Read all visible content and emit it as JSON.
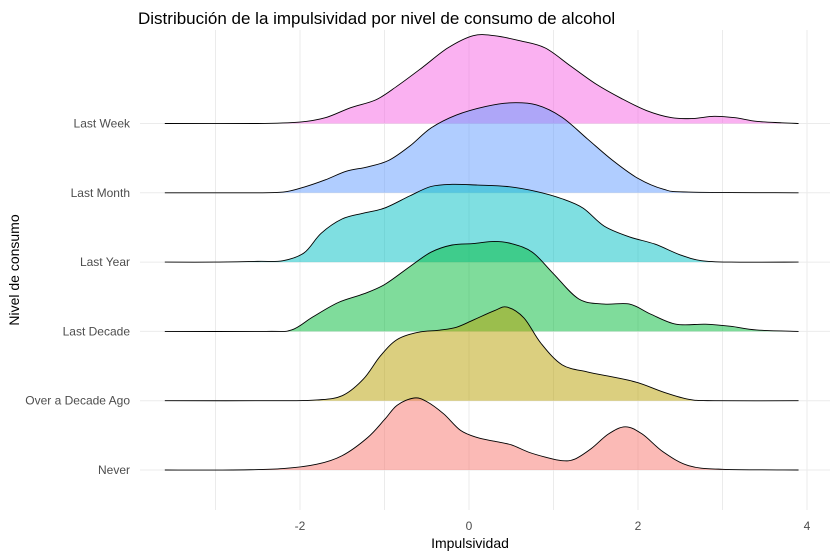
{
  "chart_data": {
    "type": "ridgeline",
    "title": "Distribución de la impulsividad por nivel de consumo de alcohol",
    "xlabel": "Impulsividad",
    "ylabel": "Nivel de consumo",
    "xlim": [
      -3.5,
      4.0
    ],
    "x_ticks": [
      "-2",
      "0",
      "2",
      "4"
    ],
    "grid": true,
    "legend": "none",
    "categories": [
      "Never",
      "Over a Decade Ago",
      "Last Decade",
      "Last Year",
      "Last Month",
      "Last Week"
    ],
    "colors": [
      "#F8766D",
      "#B79F00",
      "#00BA38",
      "#00BFC4",
      "#619CFF",
      "#F564E3"
    ],
    "fill_opacity": 0.5,
    "series": [
      {
        "name": "Never",
        "points": [
          [
            -3.6,
            0
          ],
          [
            -2.8,
            0
          ],
          [
            -2.2,
            0.02
          ],
          [
            -1.8,
            0.08
          ],
          [
            -1.5,
            0.2
          ],
          [
            -1.2,
            0.45
          ],
          [
            -1.0,
            0.7
          ],
          [
            -0.85,
            0.9
          ],
          [
            -0.65,
            1.0
          ],
          [
            -0.5,
            0.95
          ],
          [
            -0.3,
            0.78
          ],
          [
            -0.1,
            0.55
          ],
          [
            0.1,
            0.45
          ],
          [
            0.3,
            0.4
          ],
          [
            0.5,
            0.35
          ],
          [
            0.7,
            0.25
          ],
          [
            0.9,
            0.18
          ],
          [
            1.1,
            0.13
          ],
          [
            1.25,
            0.15
          ],
          [
            1.45,
            0.3
          ],
          [
            1.65,
            0.5
          ],
          [
            1.85,
            0.6
          ],
          [
            2.05,
            0.5
          ],
          [
            2.3,
            0.25
          ],
          [
            2.6,
            0.06
          ],
          [
            3.0,
            0.01
          ],
          [
            3.9,
            0
          ]
        ]
      },
      {
        "name": "Over a Decade Ago",
        "points": [
          [
            -3.6,
            0
          ],
          [
            -2.2,
            0
          ],
          [
            -1.8,
            0.01
          ],
          [
            -1.5,
            0.07
          ],
          [
            -1.25,
            0.3
          ],
          [
            -1.05,
            0.62
          ],
          [
            -0.85,
            0.85
          ],
          [
            -0.6,
            0.95
          ],
          [
            -0.35,
            0.98
          ],
          [
            -0.15,
            1.02
          ],
          [
            0.05,
            1.12
          ],
          [
            0.3,
            1.25
          ],
          [
            0.45,
            1.3
          ],
          [
            0.65,
            1.15
          ],
          [
            0.85,
            0.8
          ],
          [
            1.1,
            0.5
          ],
          [
            1.4,
            0.4
          ],
          [
            1.7,
            0.33
          ],
          [
            2.0,
            0.25
          ],
          [
            2.3,
            0.12
          ],
          [
            2.6,
            0.02
          ],
          [
            2.9,
            0
          ],
          [
            3.9,
            0
          ]
        ]
      },
      {
        "name": "Last Decade",
        "points": [
          [
            -3.6,
            0
          ],
          [
            -2.4,
            0
          ],
          [
            -2.1,
            0.02
          ],
          [
            -1.85,
            0.2
          ],
          [
            -1.55,
            0.4
          ],
          [
            -1.25,
            0.52
          ],
          [
            -1.0,
            0.65
          ],
          [
            -0.7,
            0.9
          ],
          [
            -0.45,
            1.1
          ],
          [
            -0.2,
            1.2
          ],
          [
            0.05,
            1.22
          ],
          [
            0.3,
            1.25
          ],
          [
            0.5,
            1.22
          ],
          [
            0.75,
            1.1
          ],
          [
            1.0,
            0.8
          ],
          [
            1.3,
            0.45
          ],
          [
            1.6,
            0.38
          ],
          [
            1.9,
            0.38
          ],
          [
            2.15,
            0.24
          ],
          [
            2.45,
            0.1
          ],
          [
            2.8,
            0.1
          ],
          [
            3.1,
            0.07
          ],
          [
            3.4,
            0.02
          ],
          [
            3.9,
            0
          ]
        ]
      },
      {
        "name": "Last Year",
        "points": [
          [
            -3.6,
            0
          ],
          [
            -3.0,
            0
          ],
          [
            -2.5,
            0.01
          ],
          [
            -2.2,
            0.02
          ],
          [
            -1.95,
            0.13
          ],
          [
            -1.75,
            0.4
          ],
          [
            -1.5,
            0.6
          ],
          [
            -1.25,
            0.68
          ],
          [
            -1.0,
            0.75
          ],
          [
            -0.7,
            0.92
          ],
          [
            -0.45,
            1.05
          ],
          [
            -0.2,
            1.08
          ],
          [
            0.1,
            1.07
          ],
          [
            0.45,
            1.05
          ],
          [
            0.8,
            0.98
          ],
          [
            1.1,
            0.88
          ],
          [
            1.35,
            0.75
          ],
          [
            1.6,
            0.5
          ],
          [
            1.9,
            0.35
          ],
          [
            2.2,
            0.25
          ],
          [
            2.5,
            0.1
          ],
          [
            2.75,
            0.02
          ],
          [
            3.1,
            0
          ],
          [
            3.9,
            0
          ]
        ]
      },
      {
        "name": "Last Month",
        "points": [
          [
            -3.6,
            0
          ],
          [
            -2.6,
            0
          ],
          [
            -2.2,
            0.01
          ],
          [
            -1.95,
            0.08
          ],
          [
            -1.7,
            0.18
          ],
          [
            -1.45,
            0.3
          ],
          [
            -1.2,
            0.36
          ],
          [
            -0.95,
            0.45
          ],
          [
            -0.7,
            0.65
          ],
          [
            -0.45,
            0.9
          ],
          [
            -0.15,
            1.08
          ],
          [
            0.2,
            1.2
          ],
          [
            0.5,
            1.25
          ],
          [
            0.8,
            1.22
          ],
          [
            1.1,
            1.05
          ],
          [
            1.4,
            0.75
          ],
          [
            1.7,
            0.45
          ],
          [
            2.0,
            0.2
          ],
          [
            2.3,
            0.05
          ],
          [
            2.6,
            0.01
          ],
          [
            3.9,
            0
          ]
        ]
      },
      {
        "name": "Last Week",
        "points": [
          [
            -3.6,
            0
          ],
          [
            -2.5,
            0
          ],
          [
            -2.0,
            0.02
          ],
          [
            -1.7,
            0.08
          ],
          [
            -1.4,
            0.22
          ],
          [
            -1.1,
            0.33
          ],
          [
            -0.85,
            0.52
          ],
          [
            -0.55,
            0.78
          ],
          [
            -0.25,
            1.05
          ],
          [
            0.05,
            1.22
          ],
          [
            0.3,
            1.22
          ],
          [
            0.6,
            1.15
          ],
          [
            0.9,
            1.05
          ],
          [
            1.2,
            0.8
          ],
          [
            1.5,
            0.55
          ],
          [
            1.8,
            0.35
          ],
          [
            2.1,
            0.18
          ],
          [
            2.4,
            0.08
          ],
          [
            2.65,
            0.07
          ],
          [
            2.9,
            0.1
          ],
          [
            3.15,
            0.08
          ],
          [
            3.4,
            0.03
          ],
          [
            3.7,
            0.01
          ],
          [
            3.9,
            0
          ]
        ]
      }
    ]
  }
}
